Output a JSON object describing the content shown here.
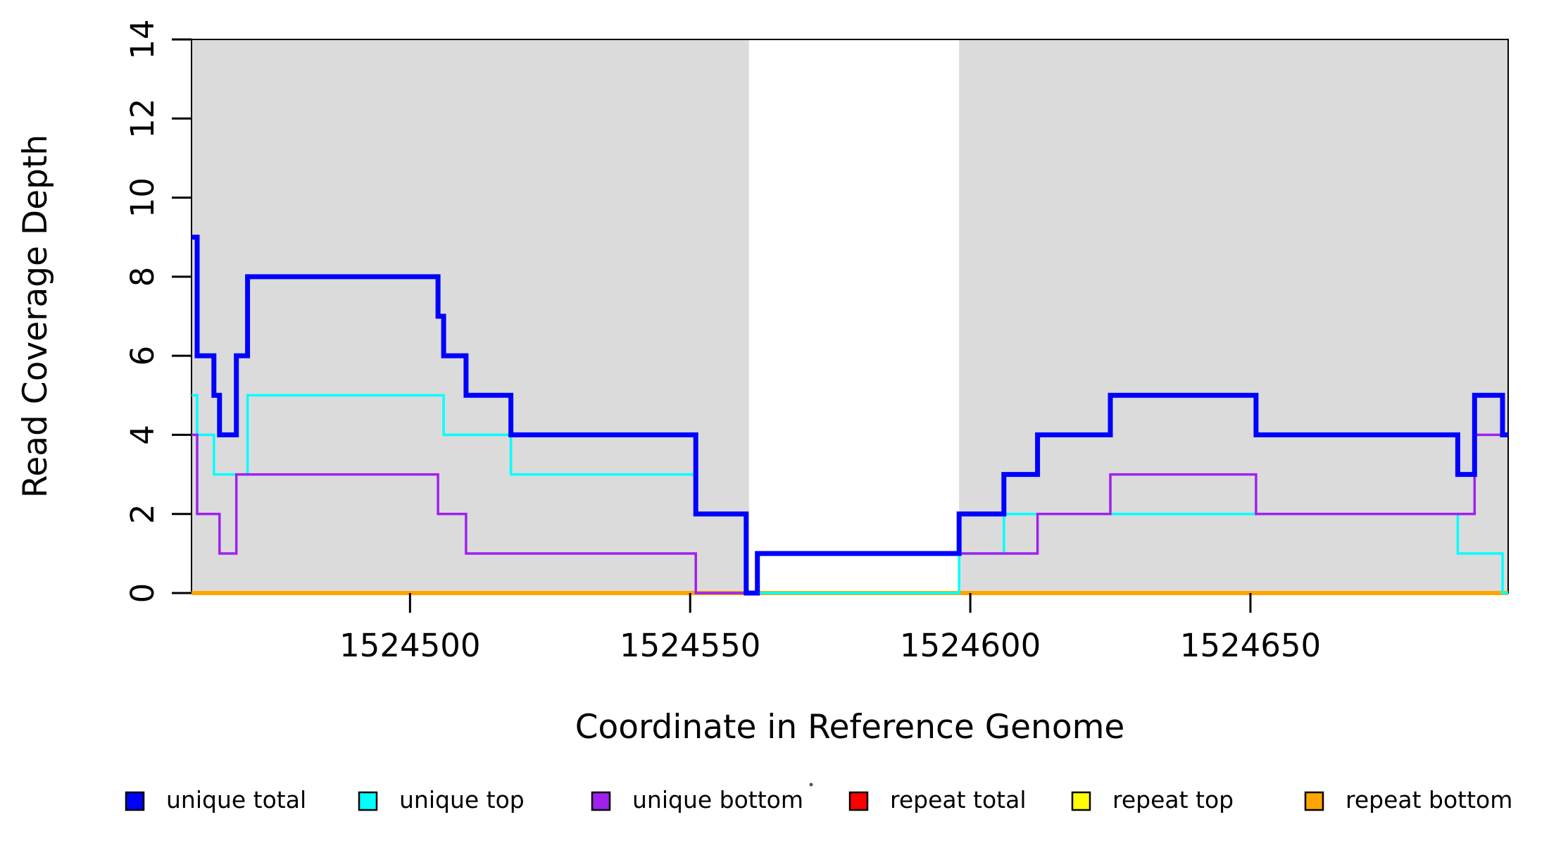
{
  "figure": {
    "background": "#FFFFFF",
    "shaded_region_color": "#DBDBDB",
    "box_color": "#000000",
    "tick_color": "#000000"
  },
  "chart_data": {
    "type": "line",
    "step": true,
    "title": "",
    "xlabel": "Coordinate in Reference Genome",
    "ylabel": "Read Coverage Depth",
    "xlim": [
      1524461,
      1524696
    ],
    "ylim": [
      0,
      14
    ],
    "x_ticks": [
      1524500,
      1524550,
      1524600,
      1524650
    ],
    "x_tick_labels": [
      "1524500",
      "1524550",
      "1524600",
      "1524650"
    ],
    "y_ticks": [
      0,
      2,
      4,
      6,
      8,
      10,
      12,
      14
    ],
    "y_tick_labels": [
      "0",
      "2",
      "4",
      "6",
      "8",
      "10",
      "12",
      "14"
    ],
    "grid": false,
    "legend_position": "bottom",
    "shaded_x_regions": [
      [
        1524461,
        1524560.5
      ],
      [
        1524598,
        1524696
      ]
    ],
    "series": [
      {
        "name": "repeat total",
        "color": "#FF0000",
        "linewidth": 3.5,
        "points": [
          [
            1524461,
            0
          ],
          [
            1524696,
            0
          ]
        ]
      },
      {
        "name": "repeat top",
        "color": "#FFFF00",
        "linewidth": 3.5,
        "points": [
          [
            1524461,
            0
          ],
          [
            1524696,
            0
          ]
        ]
      },
      {
        "name": "repeat bottom",
        "color": "#FFA500",
        "linewidth": 6,
        "points": [
          [
            1524461,
            0
          ],
          [
            1524696,
            0
          ]
        ]
      },
      {
        "name": "unique top",
        "color": "#00FFFF",
        "linewidth": 3.5,
        "points": [
          [
            1524461,
            5
          ],
          [
            1524462,
            4
          ],
          [
            1524465,
            3
          ],
          [
            1524471,
            5
          ],
          [
            1524506,
            4
          ],
          [
            1524518,
            3
          ],
          [
            1524551,
            2
          ],
          [
            1524560,
            0
          ],
          [
            1524598,
            1
          ],
          [
            1524606,
            2
          ],
          [
            1524687,
            1
          ],
          [
            1524695,
            0
          ],
          [
            1524696,
            0
          ]
        ]
      },
      {
        "name": "unique bottom",
        "color": "#A020F0",
        "linewidth": 3.5,
        "points": [
          [
            1524461,
            4
          ],
          [
            1524462,
            2
          ],
          [
            1524466,
            1
          ],
          [
            1524469,
            3
          ],
          [
            1524505,
            2
          ],
          [
            1524510,
            1
          ],
          [
            1524551,
            0
          ],
          [
            1524562,
            1
          ],
          [
            1524612,
            2
          ],
          [
            1524625,
            3
          ],
          [
            1524651,
            2
          ],
          [
            1524690,
            4
          ],
          [
            1524696,
            4
          ]
        ]
      },
      {
        "name": "unique total",
        "color": "#0000FF",
        "linewidth": 7,
        "points": [
          [
            1524461,
            9
          ],
          [
            1524462,
            6
          ],
          [
            1524465,
            5
          ],
          [
            1524466,
            4
          ],
          [
            1524469,
            6
          ],
          [
            1524471,
            8
          ],
          [
            1524505,
            7
          ],
          [
            1524506,
            6
          ],
          [
            1524510,
            5
          ],
          [
            1524518,
            4
          ],
          [
            1524551,
            2
          ],
          [
            1524560,
            0
          ],
          [
            1524562,
            1
          ],
          [
            1524598,
            2
          ],
          [
            1524606,
            3
          ],
          [
            1524612,
            4
          ],
          [
            1524625,
            5
          ],
          [
            1524651,
            4
          ],
          [
            1524687,
            3
          ],
          [
            1524690,
            5
          ],
          [
            1524695,
            4
          ],
          [
            1524696,
            4
          ]
        ]
      }
    ],
    "legend": [
      {
        "label": "unique total",
        "color": "#0000FF"
      },
      {
        "label": "unique top",
        "color": "#00FFFF"
      },
      {
        "label": "unique bottom",
        "color": "#A020F0"
      },
      {
        "label": "repeat total",
        "color": "#FF0000"
      },
      {
        "label": "repeat top",
        "color": "#FFFF00"
      },
      {
        "label": "repeat bottom",
        "color": "#FFA500"
      }
    ]
  }
}
